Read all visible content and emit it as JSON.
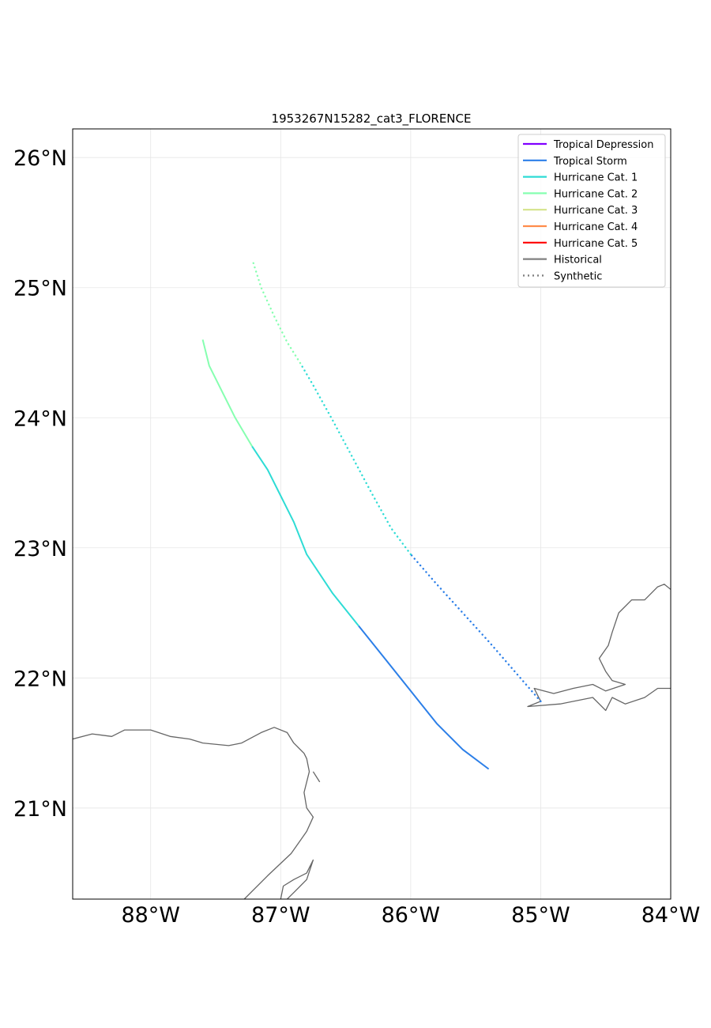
{
  "chart_data": {
    "type": "line",
    "title": "1953267N15282_cat3_FLORENCE",
    "xlim": [
      -88.6,
      -84.0
    ],
    "ylim": [
      20.3,
      26.22
    ],
    "x_ticks": [
      -88,
      -87,
      -86,
      -85,
      -84
    ],
    "y_ticks": [
      21,
      22,
      23,
      24,
      25,
      26
    ],
    "x_tick_labels": [
      "88°W",
      "87°W",
      "86°W",
      "85°W",
      "84°W"
    ],
    "y_tick_labels": [
      "21°N",
      "22°N",
      "23°N",
      "24°N",
      "25°N",
      "26°N"
    ],
    "grid": true,
    "legend_position": "upper right",
    "legend": [
      {
        "label": "Tropical Depression",
        "color": "#8000ff",
        "style": "solid"
      },
      {
        "label": "Tropical Storm",
        "color": "#2c7fe8",
        "style": "solid"
      },
      {
        "label": "Hurricane Cat. 1",
        "color": "#2edcd5",
        "style": "solid"
      },
      {
        "label": "Hurricane Cat. 2",
        "color": "#86ffb0",
        "style": "solid"
      },
      {
        "label": "Hurricane Cat. 3",
        "color": "#d4e38a",
        "style": "solid"
      },
      {
        "label": "Hurricane Cat. 4",
        "color": "#ff8c4b",
        "style": "solid"
      },
      {
        "label": "Hurricane Cat. 5",
        "color": "#ff0000",
        "style": "solid"
      },
      {
        "label": "Historical",
        "color": "#808080",
        "style": "solid"
      },
      {
        "label": "Synthetic",
        "color": "#808080",
        "style": "dotted"
      }
    ],
    "series": [
      {
        "name": "Historical",
        "style": "solid",
        "segments": [
          {
            "category": "Tropical Storm",
            "color": "#2c7fe8",
            "points": [
              [
                -85.4,
                21.3
              ],
              [
                -85.6,
                21.45
              ],
              [
                -85.8,
                21.65
              ],
              [
                -86.0,
                21.9
              ],
              [
                -86.2,
                22.15
              ],
              [
                -86.4,
                22.4
              ]
            ]
          },
          {
            "category": "Hurricane Cat. 1",
            "color": "#2edcd5",
            "points": [
              [
                -86.4,
                22.4
              ],
              [
                -86.6,
                22.65
              ],
              [
                -86.8,
                22.95
              ],
              [
                -86.9,
                23.2
              ],
              [
                -87.0,
                23.4
              ],
              [
                -87.1,
                23.6
              ],
              [
                -87.22,
                23.78
              ]
            ]
          },
          {
            "category": "Hurricane Cat. 2",
            "color": "#86ffb0",
            "points": [
              [
                -87.22,
                23.78
              ],
              [
                -87.35,
                24.0
              ],
              [
                -87.45,
                24.2
              ],
              [
                -87.55,
                24.4
              ],
              [
                -87.6,
                24.6
              ]
            ]
          }
        ]
      },
      {
        "name": "Synthetic",
        "style": "dotted",
        "segments": [
          {
            "category": "Tropical Storm",
            "color": "#2c7fe8",
            "points": [
              [
                -85.0,
                21.82
              ],
              [
                -85.2,
                22.05
              ],
              [
                -85.4,
                22.28
              ],
              [
                -85.6,
                22.5
              ],
              [
                -85.8,
                22.72
              ],
              [
                -86.0,
                22.95
              ]
            ]
          },
          {
            "category": "Hurricane Cat. 1",
            "color": "#2edcd5",
            "points": [
              [
                -86.0,
                22.95
              ],
              [
                -86.15,
                23.15
              ],
              [
                -86.3,
                23.42
              ],
              [
                -86.45,
                23.7
              ],
              [
                -86.6,
                23.98
              ],
              [
                -86.75,
                24.25
              ],
              [
                -86.85,
                24.42
              ]
            ]
          },
          {
            "category": "Hurricane Cat. 2",
            "color": "#86ffb0",
            "points": [
              [
                -86.85,
                24.42
              ],
              [
                -86.95,
                24.58
              ],
              [
                -87.05,
                24.78
              ],
              [
                -87.15,
                25.0
              ],
              [
                -87.22,
                25.22
              ]
            ]
          }
        ]
      }
    ]
  },
  "map_lines": {
    "yucatan_coast": [
      [
        -88.6,
        21.53
      ],
      [
        -88.45,
        21.57
      ],
      [
        -88.3,
        21.55
      ],
      [
        -88.2,
        21.6
      ],
      [
        -88.0,
        21.6
      ],
      [
        -87.85,
        21.55
      ],
      [
        -87.7,
        21.53
      ],
      [
        -87.6,
        21.5
      ],
      [
        -87.4,
        21.48
      ],
      [
        -87.3,
        21.5
      ],
      [
        -87.15,
        21.58
      ],
      [
        -87.05,
        21.62
      ],
      [
        -86.95,
        21.58
      ],
      [
        -86.9,
        21.5
      ],
      [
        -86.82,
        21.42
      ],
      [
        -86.8,
        21.38
      ],
      [
        -86.78,
        21.28
      ],
      [
        -86.82,
        21.12
      ],
      [
        -86.8,
        21.0
      ],
      [
        -86.75,
        20.93
      ],
      [
        -86.8,
        20.82
      ],
      [
        -86.92,
        20.65
      ],
      [
        -87.1,
        20.48
      ],
      [
        -87.28,
        20.3
      ]
    ],
    "cozumel": [
      [
        -87.0,
        20.3
      ],
      [
        -86.98,
        20.4
      ],
      [
        -86.9,
        20.45
      ],
      [
        -86.8,
        20.5
      ],
      [
        -86.75,
        20.6
      ],
      [
        -86.8,
        20.45
      ],
      [
        -86.9,
        20.35
      ],
      [
        -86.95,
        20.3
      ]
    ],
    "contoy": [
      [
        -86.75,
        21.28
      ],
      [
        -86.7,
        21.2
      ]
    ],
    "cuba_coast": [
      [
        -84.0,
        22.68
      ],
      [
        -84.05,
        22.72
      ],
      [
        -84.1,
        22.7
      ],
      [
        -84.2,
        22.6
      ],
      [
        -84.3,
        22.6
      ],
      [
        -84.4,
        22.5
      ],
      [
        -84.45,
        22.35
      ],
      [
        -84.48,
        22.25
      ],
      [
        -84.55,
        22.15
      ],
      [
        -84.5,
        22.05
      ],
      [
        -84.45,
        21.98
      ],
      [
        -84.35,
        21.95
      ],
      [
        -84.5,
        21.9
      ],
      [
        -84.6,
        21.95
      ],
      [
        -84.75,
        21.92
      ],
      [
        -84.9,
        21.88
      ],
      [
        -85.05,
        21.92
      ],
      [
        -85.0,
        21.82
      ],
      [
        -85.1,
        21.78
      ],
      [
        -84.85,
        21.8
      ],
      [
        -84.6,
        21.85
      ],
      [
        -84.5,
        21.75
      ],
      [
        -84.45,
        21.85
      ],
      [
        -84.35,
        21.8
      ],
      [
        -84.2,
        21.85
      ],
      [
        -84.1,
        21.92
      ],
      [
        -84.0,
        21.92
      ]
    ]
  }
}
